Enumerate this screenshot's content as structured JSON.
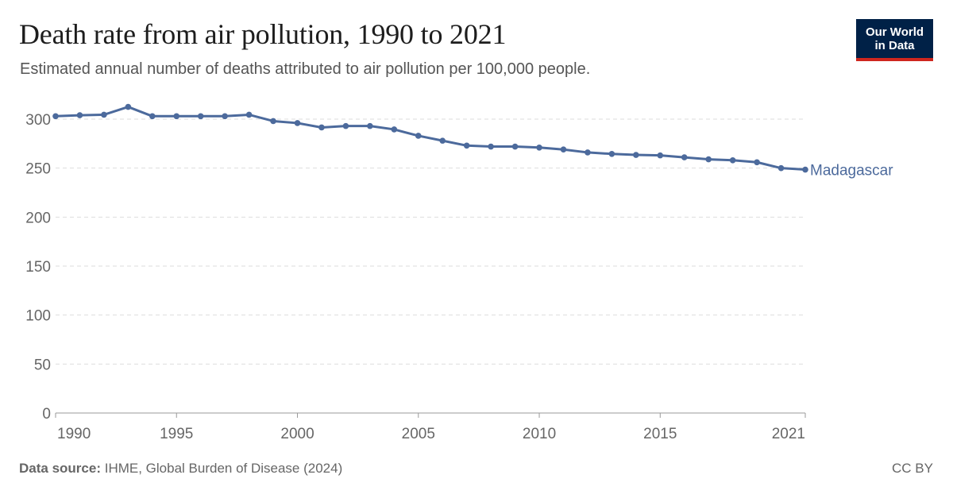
{
  "header": {
    "title": "Death rate from air pollution, 1990 to 2021",
    "subtitle": "Estimated annual number of deaths attributed to air pollution per 100,000 people."
  },
  "logo": {
    "line1": "Our World",
    "line2": "in Data"
  },
  "footer": {
    "source_label": "Data source:",
    "source_text": "IHME, Global Burden of Disease (2024)",
    "license": "CC BY"
  },
  "colors": {
    "series": "#4c6a9c",
    "grid": "#dddddd",
    "axis_text": "#666666"
  },
  "chart_data": {
    "type": "line",
    "title": "Death rate from air pollution, 1990 to 2021",
    "subtitle": "Estimated annual number of deaths attributed to air pollution per 100,000 people.",
    "xlabel": "",
    "ylabel": "",
    "xlim": [
      1990,
      2021
    ],
    "ylim": [
      0,
      300
    ],
    "x_ticks": [
      1990,
      1995,
      2000,
      2005,
      2010,
      2015,
      2021
    ],
    "y_ticks": [
      0,
      50,
      100,
      150,
      200,
      250,
      300
    ],
    "grid": true,
    "legend": "inline-right",
    "x": [
      1990,
      1991,
      1992,
      1993,
      1994,
      1995,
      1996,
      1997,
      1998,
      1999,
      2000,
      2001,
      2002,
      2003,
      2004,
      2005,
      2006,
      2007,
      2008,
      2009,
      2010,
      2011,
      2012,
      2013,
      2014,
      2015,
      2016,
      2017,
      2018,
      2019,
      2020,
      2021
    ],
    "series": [
      {
        "name": "Madagascar",
        "values": [
          303,
          304,
          304.5,
          312.5,
          303,
          303,
          303,
          303,
          304.5,
          298,
          296,
          291.5,
          293,
          293,
          289.5,
          283,
          278,
          273,
          272,
          272,
          271,
          269,
          266,
          264.5,
          263.5,
          263,
          261,
          259,
          258,
          256,
          250,
          248.5
        ]
      }
    ]
  }
}
